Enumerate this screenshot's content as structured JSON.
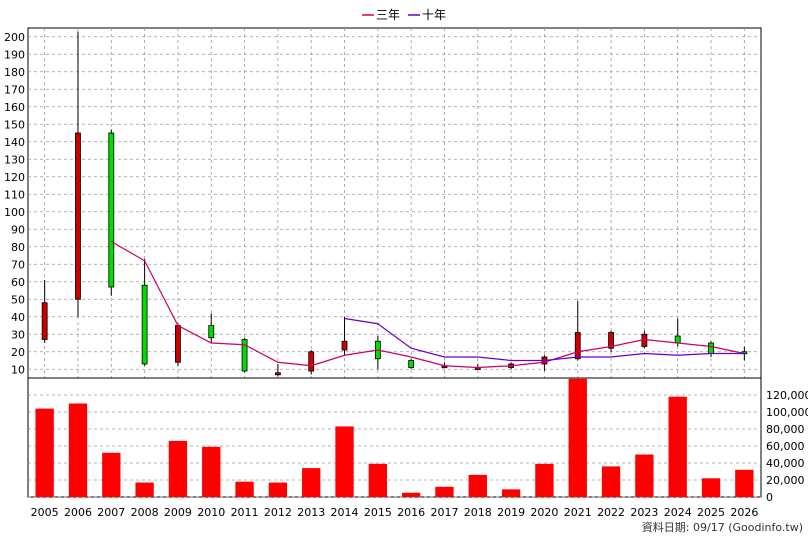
{
  "legend": [
    {
      "label": "三年",
      "color": "#cc0066"
    },
    {
      "label": "十年",
      "color": "#6600cc"
    }
  ],
  "footer": "資料日期: 09/17  (Goodinfo.tw)",
  "colors": {
    "up": "#cc0000",
    "down": "#00dd00",
    "volume": "#ff0000",
    "grid": "#999999"
  },
  "chart_data": [
    {
      "type": "candlestick",
      "categories": [
        "2005",
        "2006",
        "2007",
        "2008",
        "2009",
        "2010",
        "2011",
        "2012",
        "2013",
        "2014",
        "2015",
        "2016",
        "2017",
        "2018",
        "2019",
        "2020",
        "2021",
        "2022",
        "2023",
        "2024",
        "2025",
        "2026"
      ],
      "ylim": [
        5,
        205
      ],
      "yticks": [
        10,
        20,
        30,
        40,
        50,
        60,
        70,
        80,
        90,
        100,
        110,
        120,
        130,
        140,
        150,
        160,
        170,
        180,
        190,
        200
      ],
      "candles": [
        {
          "open": 27,
          "close": 48,
          "high": 61,
          "low": 25
        },
        {
          "open": 50,
          "close": 145,
          "high": 203,
          "low": 40
        },
        {
          "open": 145,
          "close": 57,
          "high": 147,
          "low": 52
        },
        {
          "open": 58,
          "close": 13,
          "high": 73,
          "low": 12
        },
        {
          "open": 14,
          "close": 35,
          "high": 36,
          "low": 12
        },
        {
          "open": 35,
          "close": 28,
          "high": 42,
          "low": 25
        },
        {
          "open": 27,
          "close": 9,
          "high": 28,
          "low": 8
        },
        {
          "open": 8,
          "close": 8,
          "high": 13,
          "low": 6
        },
        {
          "open": 9,
          "close": 20,
          "high": 21,
          "low": 7
        },
        {
          "open": 21,
          "close": 26,
          "high": 40,
          "low": 18
        },
        {
          "open": 26,
          "close": 16,
          "high": 29,
          "low": 10
        },
        {
          "open": 15,
          "close": 11,
          "high": 16,
          "low": 10
        },
        {
          "open": 12,
          "close": 12,
          "high": 14,
          "low": 11
        },
        {
          "open": 11,
          "close": 11,
          "high": 13,
          "low": 10
        },
        {
          "open": 11,
          "close": 13,
          "high": 14,
          "low": 10
        },
        {
          "open": 13,
          "close": 17,
          "high": 18,
          "low": 9
        },
        {
          "open": 16,
          "close": 31,
          "high": 49,
          "low": 15
        },
        {
          "open": 22,
          "close": 31,
          "high": 32,
          "low": 20
        },
        {
          "open": 23,
          "close": 30,
          "high": 32,
          "low": 22
        },
        {
          "open": 29,
          "close": 25,
          "high": 39,
          "low": 23
        },
        {
          "open": 25,
          "close": 19,
          "high": 26,
          "low": 17
        },
        {
          "open": 20,
          "close": 19,
          "high": 23,
          "low": 15
        }
      ],
      "series": [
        {
          "name": "三年",
          "values": [
            null,
            null,
            83,
            72,
            35,
            25,
            24,
            14,
            12,
            18,
            21,
            17,
            12,
            11,
            12,
            14,
            20,
            23,
            27,
            25,
            23,
            19
          ]
        },
        {
          "name": "十年",
          "values": [
            null,
            null,
            null,
            null,
            null,
            null,
            null,
            null,
            null,
            null,
            null,
            null,
            null,
            null,
            null,
            null,
            null,
            null,
            null,
            null,
            null,
            null
          ],
          "partial_from": 9,
          "partial_values": [
            39,
            36,
            22,
            17,
            17,
            15,
            15,
            17,
            17,
            19,
            18,
            19,
            19
          ]
        }
      ]
    },
    {
      "type": "bar",
      "categories": [
        "2005",
        "2006",
        "2007",
        "2008",
        "2009",
        "2010",
        "2011",
        "2012",
        "2013",
        "2014",
        "2015",
        "2016",
        "2017",
        "2018",
        "2019",
        "2020",
        "2021",
        "2022",
        "2023",
        "2024",
        "2025",
        "2026"
      ],
      "values": [
        104000,
        110000,
        52000,
        17000,
        66000,
        59000,
        18000,
        17000,
        34000,
        83000,
        39000,
        5000,
        12000,
        26000,
        9000,
        39000,
        139000,
        36000,
        50000,
        118000,
        22000,
        32000
      ],
      "ylim": [
        0,
        140000
      ],
      "yticks": [
        "0",
        "20,000",
        "40,000",
        "60,000",
        "80,000",
        "100,000",
        "120,000"
      ]
    }
  ]
}
